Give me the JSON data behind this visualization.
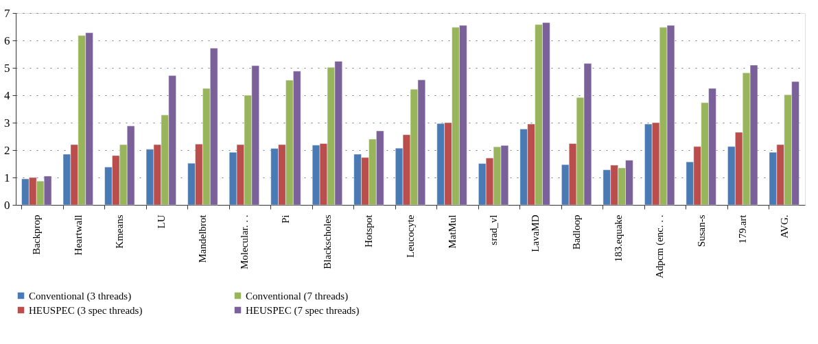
{
  "chart_data": {
    "type": "bar",
    "categories": [
      "Backprop",
      "Heartwall",
      "Kmeans",
      "LU",
      "Mandelbrot",
      "Molecular. . .",
      "Pi",
      "Blackscholes",
      "Hotspot",
      "Leucocyte",
      "MatMul",
      "srad_vl",
      "LavaMD",
      "Badloop",
      "183.equake",
      "Adpcm (enc. . .",
      "Susan-s",
      "179.art",
      "AVG."
    ],
    "series": [
      {
        "name": "Conventional (3 threads)",
        "color": "#4a7ab4",
        "values": [
          0.95,
          1.85,
          1.38,
          2.03,
          1.52,
          1.92,
          2.06,
          2.18,
          1.85,
          2.07,
          2.97,
          1.51,
          2.77,
          1.47,
          1.28,
          2.95,
          1.57,
          2.13,
          1.92
        ]
      },
      {
        "name": "HEUSPEC (3 spec threads)",
        "color": "#b94e4c",
        "values": [
          1.0,
          2.2,
          1.8,
          2.2,
          2.22,
          2.2,
          2.2,
          2.24,
          1.73,
          2.56,
          3.0,
          1.71,
          2.95,
          2.24,
          1.45,
          3.0,
          2.13,
          2.65,
          2.2
        ]
      },
      {
        "name": "Conventional (7 threads)",
        "color": "#98b55b",
        "values": [
          0.87,
          6.18,
          2.2,
          3.28,
          4.25,
          4.0,
          4.55,
          5.02,
          2.4,
          4.22,
          6.48,
          2.12,
          6.58,
          3.92,
          1.35,
          6.48,
          3.73,
          4.82,
          4.02
        ]
      },
      {
        "name": "HEUSPEC (7 spec threads)",
        "color": "#7a6199",
        "values": [
          1.05,
          6.28,
          2.88,
          4.72,
          5.72,
          5.08,
          4.88,
          5.24,
          2.7,
          4.56,
          6.55,
          2.17,
          6.65,
          5.16,
          1.63,
          6.55,
          4.25,
          5.1,
          4.5
        ]
      }
    ],
    "ylim": [
      0,
      7
    ],
    "yticks": [
      0,
      1,
      2,
      3,
      4,
      5,
      6,
      7
    ],
    "grid": "y",
    "legend": "bottom"
  }
}
